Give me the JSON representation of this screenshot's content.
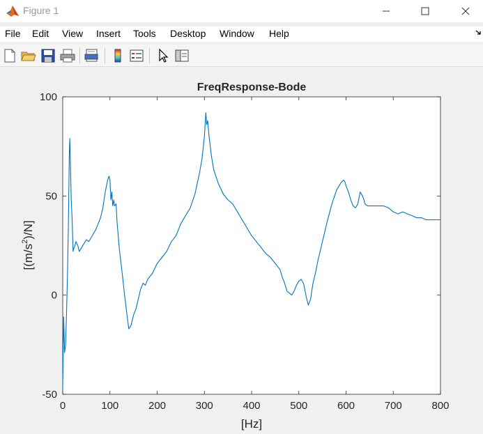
{
  "window": {
    "title": "Figure 1",
    "controls": [
      "minimize",
      "maximize",
      "close"
    ]
  },
  "menu": {
    "items": [
      "File",
      "Edit",
      "View",
      "Insert",
      "Tools",
      "Desktop",
      "Window",
      "Help"
    ]
  },
  "toolbar": {
    "buttons": [
      "new-figure-icon",
      "open-file-icon",
      "save-icon",
      "print-icon",
      "print-preview-icon",
      "insert-colorbar-icon",
      "insert-legend-icon",
      "edit-plot-cursor-icon",
      "plot-tools-icon"
    ]
  },
  "colors": {
    "line": "#0072bd",
    "axes_background": "#ffffff",
    "figure_background": "#f0f0f0"
  },
  "chart_data": {
    "type": "line",
    "title": "FreqResponse-Bode",
    "xlabel": "[Hz]",
    "ylabel_prefix": "[(m/s",
    "ylabel_sup": "2",
    "ylabel_suffix": ")/N]",
    "xlim": [
      0,
      800
    ],
    "ylim": [
      -50,
      100
    ],
    "xticks": [
      "0",
      "100",
      "200",
      "300",
      "400",
      "500",
      "600",
      "700",
      "800"
    ],
    "yticks": [
      "-50",
      "0",
      "50",
      "100"
    ],
    "grid": false,
    "series": [
      {
        "x": [
          0,
          2,
          4,
          6,
          8,
          10,
          12,
          14,
          15,
          16,
          18,
          20,
          22,
          24,
          26,
          28,
          30,
          32,
          35,
          40,
          45,
          50,
          55,
          60,
          65,
          70,
          75,
          80,
          85,
          90,
          95,
          98,
          100,
          102,
          104,
          106,
          108,
          110,
          113,
          115,
          120,
          125,
          130,
          135,
          140,
          143,
          145,
          150,
          155,
          160,
          165,
          170,
          175,
          180,
          190,
          200,
          210,
          220,
          230,
          240,
          250,
          260,
          270,
          280,
          290,
          295,
          300,
          303,
          305,
          307,
          310,
          315,
          320,
          330,
          340,
          350,
          360,
          370,
          380,
          390,
          400,
          410,
          420,
          430,
          440,
          450,
          460,
          465,
          470,
          475,
          480,
          485,
          490,
          495,
          500,
          505,
          510,
          515,
          520,
          525,
          528,
          530,
          535,
          540,
          550,
          560,
          570,
          580,
          590,
          595,
          598,
          600,
          605,
          610,
          615,
          620,
          625,
          630,
          635,
          638,
          640,
          645,
          650,
          660,
          670,
          680,
          690,
          700,
          710,
          720,
          730,
          740,
          750,
          760,
          770,
          780,
          790,
          800
        ],
        "y": [
          -47,
          -11,
          -29,
          -25,
          -10,
          10,
          35,
          72,
          79,
          70,
          48,
          38,
          22,
          24,
          25,
          27,
          26,
          25,
          22,
          24,
          26,
          28,
          27,
          29,
          31,
          33,
          36,
          39,
          44,
          52,
          58,
          60,
          58,
          48,
          52,
          45,
          48,
          45,
          46,
          37,
          23,
          13,
          2,
          -8,
          -17,
          -16,
          -15,
          -10,
          -7,
          -2,
          3,
          6,
          5,
          8,
          11,
          16,
          19,
          22,
          27,
          30,
          36,
          40,
          44,
          51,
          62,
          69,
          80,
          92,
          86,
          88,
          80,
          70,
          63,
          56,
          51,
          48,
          46,
          42,
          38,
          34,
          30,
          27,
          24,
          21,
          19,
          16,
          13,
          9,
          6,
          2,
          1,
          0,
          2,
          5,
          7,
          8,
          6,
          0,
          -5,
          -2,
          3,
          6,
          11,
          17,
          27,
          37,
          46,
          53,
          57,
          58,
          57,
          55,
          52,
          48,
          45,
          44,
          46,
          52,
          50,
          48,
          46,
          45,
          45,
          45,
          45,
          45,
          44,
          42,
          41,
          42,
          41,
          40,
          39,
          39,
          38,
          38,
          38,
          38
        ]
      }
    ]
  }
}
